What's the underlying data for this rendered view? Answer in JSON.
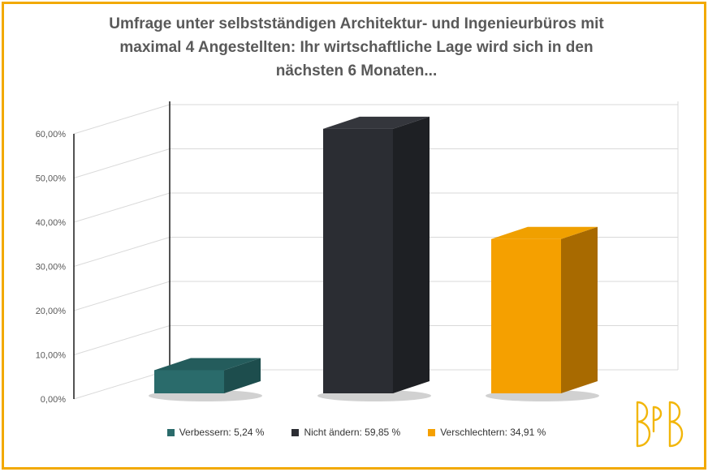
{
  "chart_data": {
    "type": "bar",
    "title_lines": [
      "Umfrage unter selbstständigen Architektur- und Ingenieurbüros mit",
      "maximal 4 Angestellten: Ihr wirtschaftliche Lage wird sich in den",
      "nächsten 6 Monaten..."
    ],
    "categories": [
      "Verbessern",
      "Nicht ändern",
      "Verschlechtern"
    ],
    "values": [
      5.24,
      59.85,
      34.91
    ],
    "unit": "%",
    "ylim": [
      0,
      60
    ],
    "yticks": [
      "0,00%",
      "10,00%",
      "20,00%",
      "30,00%",
      "40,00%",
      "50,00%",
      "60,00%"
    ],
    "grid": true,
    "legend_position": "bottom",
    "legend": [
      {
        "label": "Verbessern: 5,24 %",
        "color": "#2a6b6b"
      },
      {
        "label": "Nicht ändern: 59,85 %",
        "color": "#2b2d33"
      },
      {
        "label": "Verschlechtern: 34,91 %",
        "color": "#f5a000"
      }
    ],
    "bar_colors": [
      {
        "front": "#2a6b6b",
        "side": "#1d4d4d",
        "top": "#245c5c"
      },
      {
        "front": "#2b2d33",
        "side": "#1e2024",
        "top": "#34363c"
      },
      {
        "front": "#f5a000",
        "side": "#a86a00",
        "top": "#f0a000"
      }
    ]
  },
  "logo": {
    "text": "BPB",
    "color": "#f2b60a"
  }
}
